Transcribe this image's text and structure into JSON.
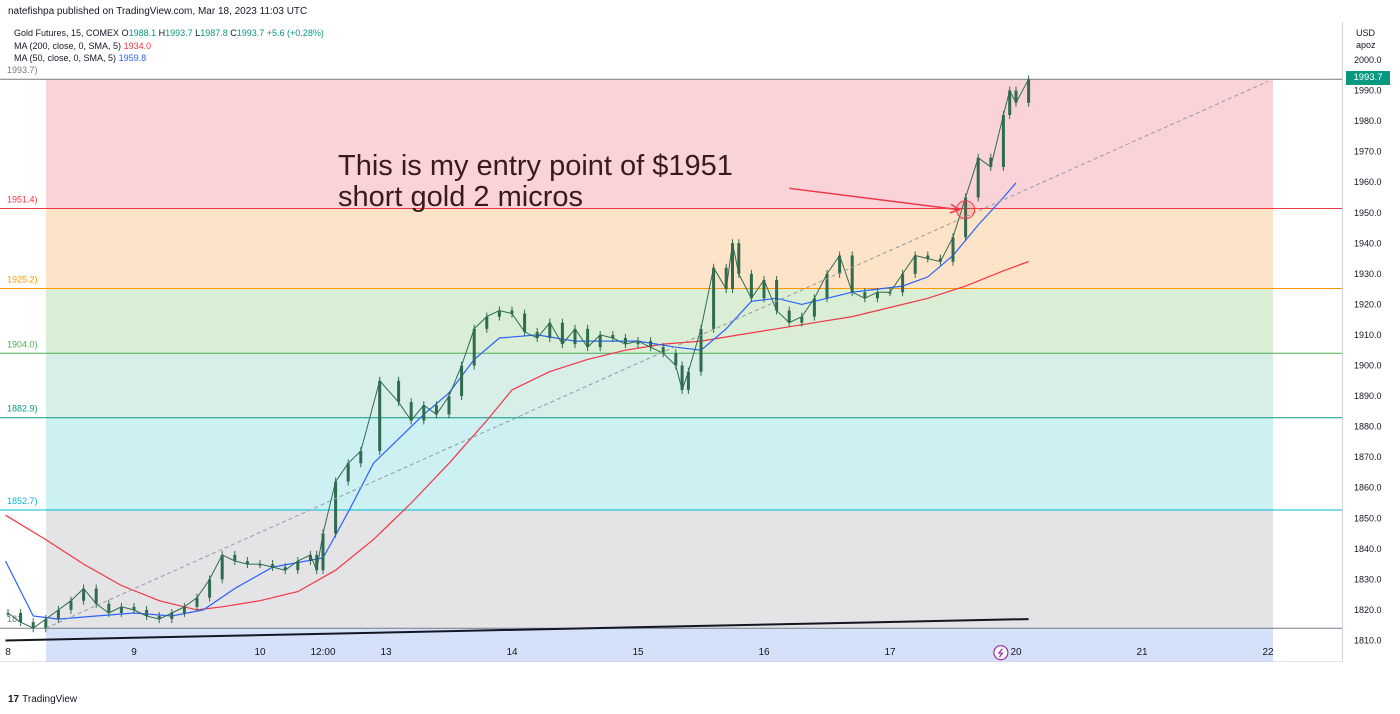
{
  "header": {
    "publish_line": "natefishpa published on TradingView.com, Mar 18, 2023 11:03 UTC"
  },
  "legend": {
    "symbol": "Gold Futures, 15, COMEX",
    "open_label": "O",
    "open": "1988.1",
    "high_label": "H",
    "high": "1993.7",
    "low_label": "L",
    "low": "1987.8",
    "close_label": "C",
    "close": "1993.7",
    "change": "+5.6 (+0.28%)",
    "ma200_label": "MA (200, close, 0, SMA, 5)",
    "ma200_value": "1934.0",
    "ma50_label": "MA (50, close, 0, SMA, 5)",
    "ma50_value": "1959.8"
  },
  "axis": {
    "currency": "USD",
    "unit": "apoz",
    "last_price": "1993.7"
  },
  "annotation": {
    "line1": "This is my entry point of $1951",
    "line2": "short gold 2 micros"
  },
  "brand": {
    "logo": "17",
    "name": "TradingView"
  },
  "colors": {
    "up": "#089981",
    "ma200": "#f23645",
    "ma50": "#2962ff",
    "candle": "#2f6b4f"
  },
  "chart_data": {
    "type": "line",
    "title": "Gold Futures, 15, COMEX",
    "xlabel": "",
    "ylabel": "",
    "ylim": [
      1803,
      2009
    ],
    "x_ticks": [
      {
        "label": "8",
        "pos": 8
      },
      {
        "label": "9",
        "pos": 9
      },
      {
        "label": "10",
        "pos": 10
      },
      {
        "label": "12:00",
        "pos": 10.5
      },
      {
        "label": "13",
        "pos": 11
      },
      {
        "label": "14",
        "pos": 12
      },
      {
        "label": "15",
        "pos": 13
      },
      {
        "label": "16",
        "pos": 14
      },
      {
        "label": "17",
        "pos": 15
      },
      {
        "label": "20",
        "pos": 16
      },
      {
        "label": "21",
        "pos": 17
      },
      {
        "label": "22",
        "pos": 18
      }
    ],
    "y_ticks": [
      1810,
      1820,
      1830,
      1840,
      1850,
      1860,
      1870,
      1880,
      1890,
      1900,
      1910,
      1920,
      1930,
      1940,
      1950,
      1960,
      1970,
      1980,
      1990,
      2000
    ],
    "fib_levels": [
      {
        "label": "1993.7)",
        "value": 1993.7,
        "color": "#787b86",
        "fill": "#f9d3d8"
      },
      {
        "label": "1951.4)",
        "value": 1951.4,
        "color": "#f23645",
        "fill": "#fde3c7"
      },
      {
        "label": "1925.2)",
        "value": 1925.2,
        "color": "#ff9800",
        "fill": "#daeed6"
      },
      {
        "label": "1904.0)",
        "value": 1904.0,
        "color": "#4caf50",
        "fill": "#d7eee9"
      },
      {
        "label": "1882.9)",
        "value": 1882.9,
        "color": "#089981",
        "fill": "#cdf0f3"
      },
      {
        "label": "1852.7)",
        "value": 1852.7,
        "color": "#00bcd4",
        "fill": "#e4e4e6"
      },
      {
        "label": "181",
        "value": 1814.0,
        "color": "#787b86",
        "fill": "#d5e0f9"
      }
    ],
    "fib_fill_bottom": 1803,
    "series": [
      {
        "name": "Gold Futures",
        "values": [
          [
            8.0,
            1819
          ],
          [
            8.1,
            1816
          ],
          [
            8.2,
            1814
          ],
          [
            8.3,
            1817
          ],
          [
            8.4,
            1820
          ],
          [
            8.5,
            1823
          ],
          [
            8.6,
            1827
          ],
          [
            8.7,
            1822
          ],
          [
            8.8,
            1819
          ],
          [
            8.9,
            1821
          ],
          [
            9.0,
            1820
          ],
          [
            9.1,
            1818
          ],
          [
            9.2,
            1817
          ],
          [
            9.3,
            1819
          ],
          [
            9.4,
            1821
          ],
          [
            9.5,
            1824
          ],
          [
            9.6,
            1830
          ],
          [
            9.7,
            1838
          ],
          [
            9.8,
            1836
          ],
          [
            9.9,
            1835
          ],
          [
            10.0,
            1835
          ],
          [
            10.1,
            1834
          ],
          [
            10.2,
            1833
          ],
          [
            10.3,
            1836
          ],
          [
            10.4,
            1838
          ],
          [
            10.45,
            1833
          ],
          [
            10.5,
            1845
          ],
          [
            10.6,
            1862
          ],
          [
            10.7,
            1868
          ],
          [
            10.8,
            1872
          ],
          [
            10.95,
            1895
          ],
          [
            11.1,
            1888
          ],
          [
            11.2,
            1882
          ],
          [
            11.3,
            1887
          ],
          [
            11.4,
            1884
          ],
          [
            11.5,
            1890
          ],
          [
            11.6,
            1900
          ],
          [
            11.7,
            1912
          ],
          [
            11.8,
            1916
          ],
          [
            11.9,
            1918
          ],
          [
            12.0,
            1917
          ],
          [
            12.1,
            1911
          ],
          [
            12.2,
            1909
          ],
          [
            12.3,
            1914
          ],
          [
            12.4,
            1907
          ],
          [
            12.5,
            1912
          ],
          [
            12.6,
            1906
          ],
          [
            12.7,
            1910
          ],
          [
            12.8,
            1909
          ],
          [
            12.9,
            1907
          ],
          [
            13.0,
            1908
          ],
          [
            13.1,
            1906
          ],
          [
            13.2,
            1904
          ],
          [
            13.3,
            1900
          ],
          [
            13.35,
            1892
          ],
          [
            13.4,
            1898
          ],
          [
            13.5,
            1912
          ],
          [
            13.6,
            1932
          ],
          [
            13.7,
            1925
          ],
          [
            13.75,
            1940
          ],
          [
            13.8,
            1930
          ],
          [
            13.9,
            1922
          ],
          [
            14.0,
            1928
          ],
          [
            14.1,
            1918
          ],
          [
            14.2,
            1914
          ],
          [
            14.3,
            1916
          ],
          [
            14.4,
            1922
          ],
          [
            14.5,
            1930
          ],
          [
            14.6,
            1936
          ],
          [
            14.7,
            1924
          ],
          [
            14.8,
            1922
          ],
          [
            14.9,
            1924
          ],
          [
            15.0,
            1924
          ],
          [
            15.1,
            1930
          ],
          [
            15.2,
            1936
          ],
          [
            15.3,
            1935
          ],
          [
            15.4,
            1934
          ],
          [
            15.5,
            1942
          ],
          [
            15.6,
            1955
          ],
          [
            15.7,
            1968
          ],
          [
            15.8,
            1965
          ],
          [
            15.9,
            1982
          ],
          [
            15.95,
            1990
          ],
          [
            16.0,
            1986
          ],
          [
            16.1,
            1993.7
          ]
        ]
      },
      {
        "name": "MA (200, close, 0, SMA, 5)",
        "values": [
          [
            7.98,
            1851
          ],
          [
            8.3,
            1843
          ],
          [
            8.6,
            1835
          ],
          [
            8.9,
            1828
          ],
          [
            9.2,
            1823
          ],
          [
            9.5,
            1820
          ],
          [
            9.7,
            1821
          ],
          [
            10.0,
            1823
          ],
          [
            10.3,
            1826
          ],
          [
            10.6,
            1833
          ],
          [
            10.9,
            1843
          ],
          [
            11.2,
            1855
          ],
          [
            11.5,
            1868
          ],
          [
            11.8,
            1882
          ],
          [
            12.0,
            1892
          ],
          [
            12.3,
            1898
          ],
          [
            12.6,
            1902
          ],
          [
            12.9,
            1905
          ],
          [
            13.2,
            1907
          ],
          [
            13.5,
            1908
          ],
          [
            13.8,
            1910
          ],
          [
            14.1,
            1912
          ],
          [
            14.4,
            1914
          ],
          [
            14.7,
            1916
          ],
          [
            15.0,
            1919
          ],
          [
            15.3,
            1922
          ],
          [
            15.6,
            1926
          ],
          [
            15.9,
            1931
          ],
          [
            16.1,
            1934
          ]
        ]
      },
      {
        "name": "MA (50, close, 0, SMA, 5)",
        "values": [
          [
            7.98,
            1836
          ],
          [
            8.2,
            1818
          ],
          [
            8.4,
            1817
          ],
          [
            8.7,
            1818
          ],
          [
            9.0,
            1819
          ],
          [
            9.3,
            1818
          ],
          [
            9.55,
            1820
          ],
          [
            9.8,
            1827
          ],
          [
            10.1,
            1834
          ],
          [
            10.5,
            1837
          ],
          [
            10.7,
            1852
          ],
          [
            10.9,
            1868
          ],
          [
            11.1,
            1876
          ],
          [
            11.3,
            1884
          ],
          [
            11.5,
            1891
          ],
          [
            11.7,
            1902
          ],
          [
            11.9,
            1909
          ],
          [
            12.2,
            1910
          ],
          [
            12.5,
            1908
          ],
          [
            12.8,
            1908
          ],
          [
            13.0,
            1908
          ],
          [
            13.3,
            1906
          ],
          [
            13.5,
            1905
          ],
          [
            13.7,
            1912
          ],
          [
            13.9,
            1921
          ],
          [
            14.1,
            1922
          ],
          [
            14.3,
            1920
          ],
          [
            14.5,
            1922
          ],
          [
            14.7,
            1924
          ],
          [
            14.9,
            1925
          ],
          [
            15.1,
            1926
          ],
          [
            15.3,
            1929
          ],
          [
            15.5,
            1936
          ],
          [
            15.7,
            1946
          ],
          [
            15.9,
            1955
          ],
          [
            16.0,
            1959.8
          ]
        ]
      }
    ],
    "trendline": [
      [
        7.98,
        1810
      ],
      [
        16.1,
        1817
      ]
    ],
    "dashed_projection": [
      [
        8.3,
        1814
      ],
      [
        18.0,
        1993
      ]
    ],
    "entry_circle": [
      15.6,
      1951
    ],
    "arrow": [
      [
        14.2,
        1958
      ],
      [
        15.55,
        1951
      ]
    ],
    "grid": false,
    "legend_position": "top-left"
  }
}
